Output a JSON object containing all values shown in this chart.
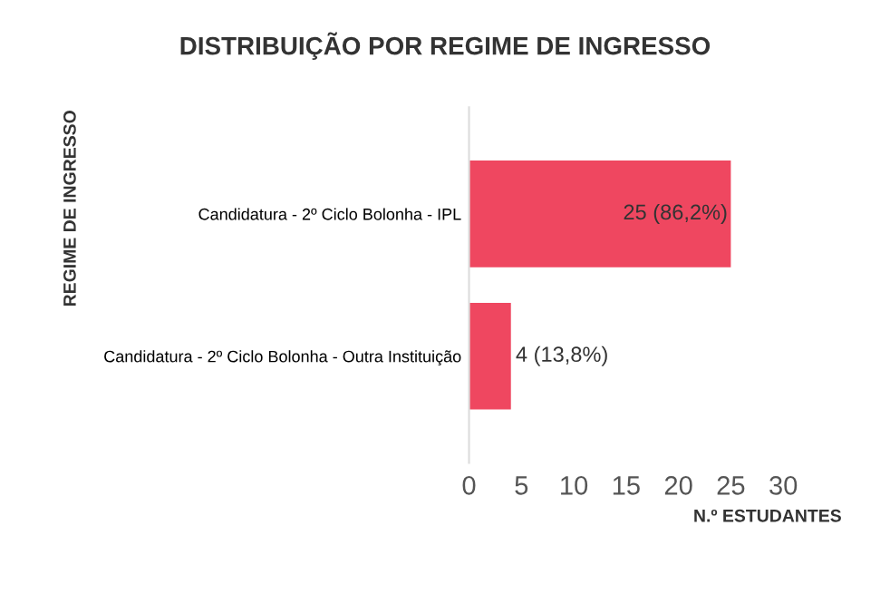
{
  "chart_data": {
    "type": "bar",
    "orientation": "horizontal",
    "title": "DISTRIBUIÇÃO POR REGIME DE INGRESSO",
    "xlabel": "N.º ESTUDANTES",
    "ylabel": "REGIME DE INGRESSO",
    "categories": [
      "Candidatura - 2º Ciclo Bolonha - IPL",
      "Candidatura - 2º Ciclo Bolonha - Outra Instituição"
    ],
    "values": [
      25,
      4
    ],
    "color": "#ef4760",
    "value_labels": [
      "25 (86,2%)",
      "4 (13,8%)"
    ],
    "xlim": [
      0,
      30
    ],
    "xticks": [
      0,
      5,
      10,
      15,
      20,
      25,
      30
    ],
    "grid": false,
    "legend": false
  }
}
